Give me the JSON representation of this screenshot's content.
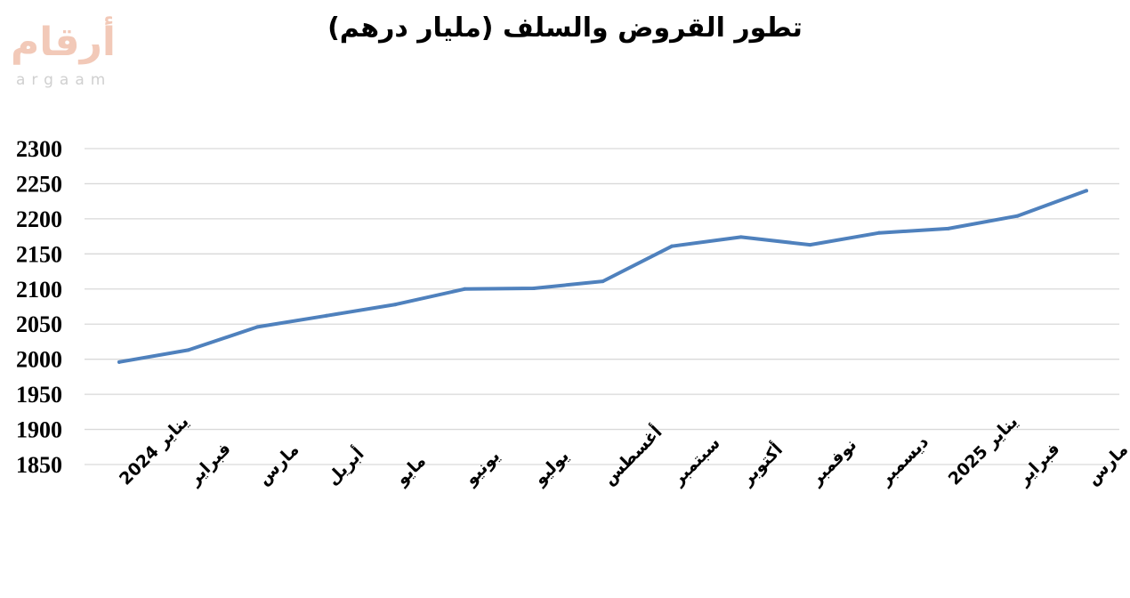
{
  "logo": {
    "arabic": "أرقام",
    "latin": "argaam"
  },
  "chart_data": {
    "type": "line",
    "title": "تطور القروض والسلف (مليار درهم)",
    "xlabel": "",
    "ylabel": "",
    "categories": [
      "يناير 2024",
      "فبراير",
      "مارس",
      "أبريل",
      "مايو",
      "يونيو",
      "يوليو",
      "أغسطس",
      "سبتمبر",
      "أكتوبر",
      "نوفمبر",
      "ديسمبر",
      "يناير 2025",
      "فبراير",
      "مارس"
    ],
    "series": [
      {
        "values": [
          1996,
          2013,
          2046,
          2062,
          2078,
          2100,
          2101,
          2111,
          2161,
          2174,
          2163,
          2180,
          2186,
          2204,
          2240
        ],
        "color": "#4f81bd"
      }
    ],
    "ylim": [
      1850,
      2300
    ],
    "yticks": [
      2300,
      2250,
      2200,
      2150,
      2100,
      2050,
      2000,
      1950,
      1900,
      1850
    ],
    "grid": true,
    "legend": "none",
    "gridline_color": "#d9d9d9"
  }
}
